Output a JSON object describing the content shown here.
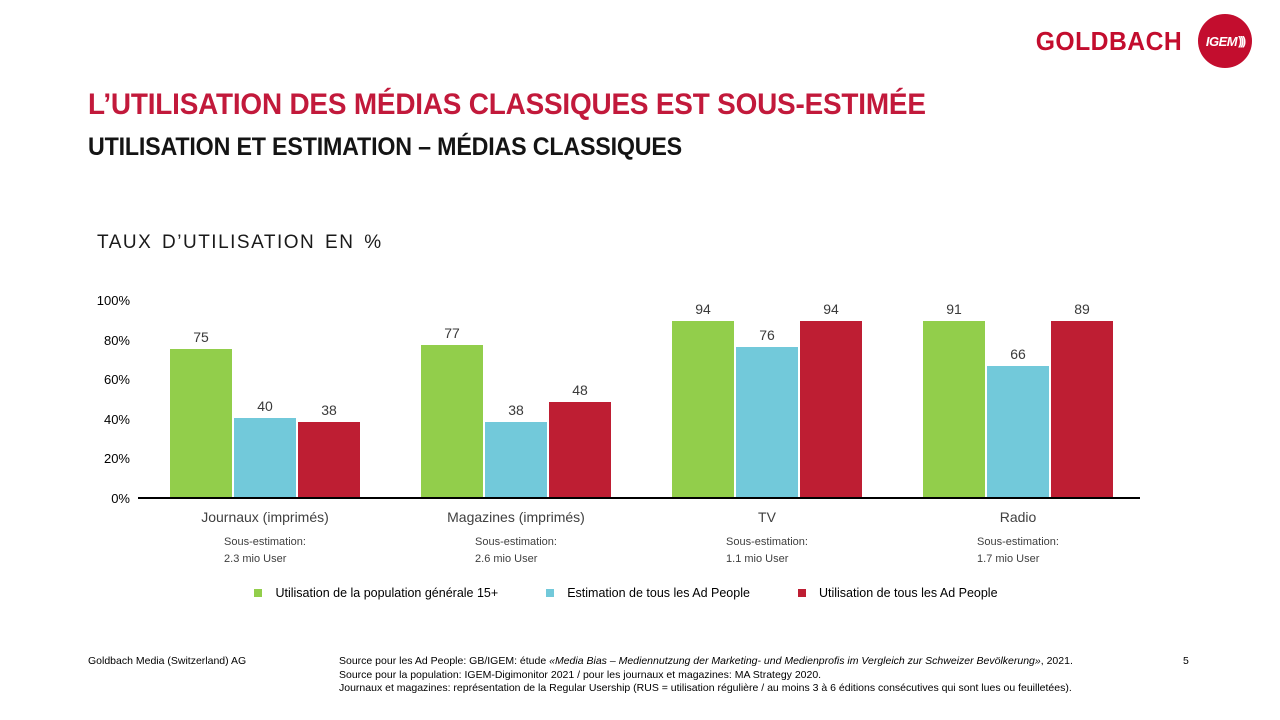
{
  "header": {
    "goldbach_logo": "GOLDBACH",
    "igem_logo": "IGEM",
    "igem_waves": ")))"
  },
  "title": "L’UTILISATION DES MÉDIAS CLASSIQUES EST SOUS-ESTIMÉE",
  "subtitle": "UTILISATION ET ESTIMATION – MÉDIAS CLASSIQUES",
  "chart_title": "TAUX D’UTILISATION EN %",
  "chart_data": {
    "type": "bar",
    "title": "TAUX D’UTILISATION EN %",
    "categories": [
      "Journaux (imprimés)",
      "Magazines (imprimés)",
      "TV",
      "Radio"
    ],
    "series": [
      {
        "name": "Utilisation de la population générale 15+",
        "color": "#92CE4B",
        "values": [
          75,
          77,
          94,
          91
        ]
      },
      {
        "name": "Estimation de tous les Ad People",
        "color": "#72C9DA",
        "values": [
          40,
          38,
          76,
          66
        ]
      },
      {
        "name": "Utilisation de tous les Ad People",
        "color": "#BE1E33",
        "values": [
          38,
          48,
          94,
          89
        ]
      }
    ],
    "sous_estimation_label": "Sous-estimation:",
    "sous_estimation_values": [
      "2.3 mio User",
      "2.6 mio User",
      "1.1 mio User",
      "1.7 mio User"
    ],
    "yticks": [
      100,
      80,
      60,
      40,
      20,
      0
    ],
    "ytick_suffix": "%",
    "ylim": [
      0,
      100
    ],
    "grid": false,
    "legend_position": "bottom"
  },
  "footer": {
    "company": "Goldbach Media (Switzerland) AG",
    "source_line1_prefix": "Source pour les Ad People: GB/IGEM: étude ",
    "source_line1_italic": "«Media Bias – Mediennutzung der Marketing- und Medienprofis im Vergleich zur Schweizer Bevölkerung»",
    "source_line1_suffix": ", 2021.",
    "source_line2": "Source pour la population: IGEM-Digimonitor 2021 / pour les journaux et magazines: MA Strategy 2020.",
    "source_line3": "Journaux et magazines: représentation de la Regular Usership (RUS = utilisation régulière / au moins 3 à 6 éditions consécutives qui sont lues ou feuilletées).",
    "page_number": "5"
  },
  "colors": {
    "title_red": "#C2193B",
    "brand_red": "#C30D2E",
    "bar_green": "#92CE4B",
    "bar_blue": "#72C9DA",
    "bar_red": "#BE1E33",
    "axis_black": "#000000"
  }
}
